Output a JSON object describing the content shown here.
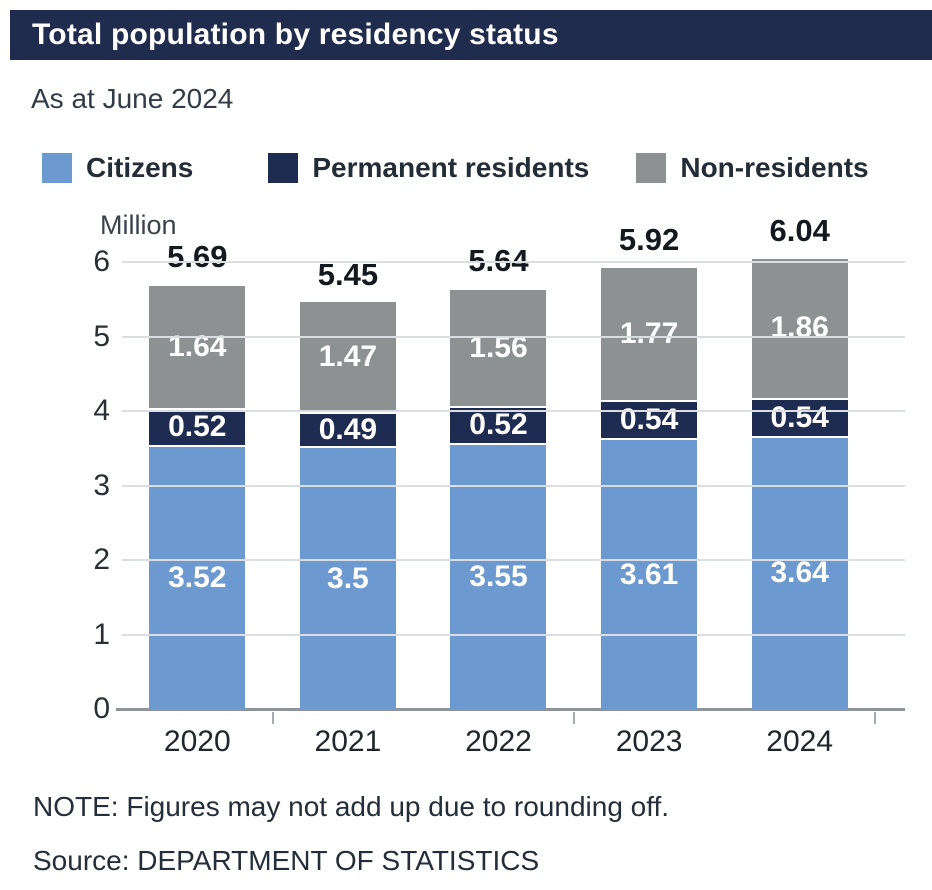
{
  "header": {
    "title": "Total population by residency status"
  },
  "subtitle": "As at June 2024",
  "legend": [
    {
      "label": "Citizens",
      "color": "#6C99CF"
    },
    {
      "label": "Permanent residents",
      "color": "#1F2C52"
    },
    {
      "label": "Non-residents",
      "color": "#8E9192"
    }
  ],
  "chart_data": {
    "type": "bar",
    "stacked": true,
    "title": "Total population by residency status",
    "subtitle": "As at June 2024",
    "categories": [
      "2020",
      "2021",
      "2022",
      "2023",
      "2024"
    ],
    "series": [
      {
        "name": "Citizens",
        "color": "#6C99CF",
        "values": [
          3.52,
          3.5,
          3.55,
          3.61,
          3.64
        ],
        "labels": [
          "3.52",
          "3.5",
          "3.55",
          "3.61",
          "3.64"
        ]
      },
      {
        "name": "Permanent residents",
        "color": "#1F2C52",
        "values": [
          0.52,
          0.49,
          0.52,
          0.54,
          0.54
        ],
        "labels": [
          "0.52",
          "0.49",
          "0.52",
          "0.54",
          "0.54"
        ]
      },
      {
        "name": "Non-residents",
        "color": "#8E9192",
        "values": [
          1.64,
          1.47,
          1.56,
          1.77,
          1.86
        ],
        "labels": [
          "1.64",
          "1.47",
          "1.56",
          "1.77",
          "1.86"
        ]
      }
    ],
    "totals": [
      5.69,
      5.45,
      5.64,
      5.92,
      6.04
    ],
    "total_labels": [
      "5.69",
      "5.45",
      "5.64",
      "5.92",
      "6.04"
    ],
    "xlabel": "",
    "ylabel": "Million",
    "ylim": [
      0,
      6
    ],
    "yticks": [
      0,
      1,
      2,
      3,
      4,
      5,
      6
    ],
    "grid": true,
    "legend_position": "top"
  },
  "footer": {
    "note": "NOTE: Figures may not add up due to rounding off.",
    "source": "Source: DEPARTMENT OF STATISTICS"
  },
  "colors": {
    "header_bg": "#202C4E",
    "grid": "#DADEE3",
    "axis": "#8F9499",
    "text_dark": "#20262D"
  }
}
